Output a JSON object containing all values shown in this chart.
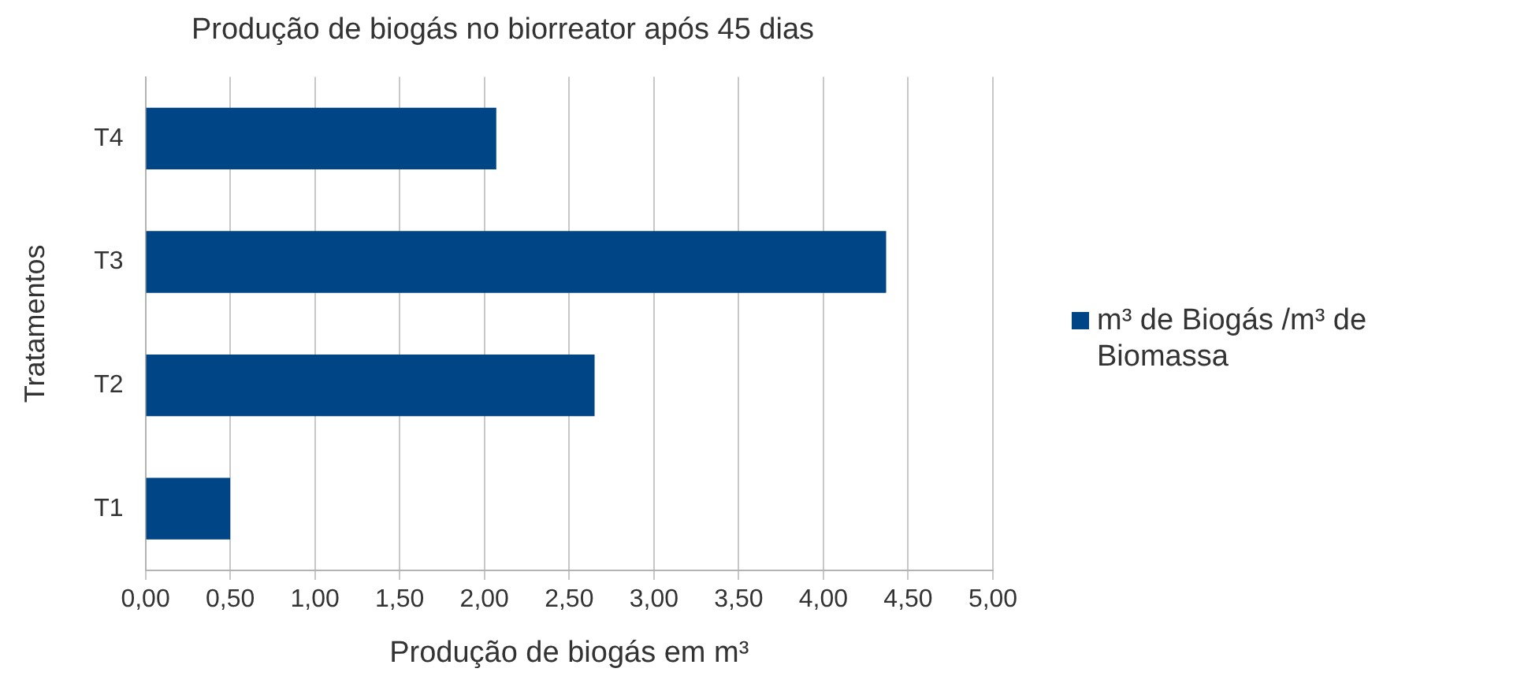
{
  "chart_data": {
    "type": "bar",
    "orientation": "horizontal",
    "title": "Produção de biogás no biorreator após 45 dias",
    "xlabel": "Produção de biogás em m³",
    "ylabel": "Tratamentos",
    "categories": [
      "T4",
      "T3",
      "T2",
      "T1"
    ],
    "series": [
      {
        "name": "m³ de Biogás /m³ de Biomassa",
        "color": "#004586",
        "values": [
          2.07,
          4.37,
          2.65,
          0.5
        ]
      }
    ],
    "xlim": [
      0,
      5
    ],
    "xticks": [
      {
        "value": 0,
        "label": "0,00"
      },
      {
        "value": 0.5,
        "label": "0,50"
      },
      {
        "value": 1,
        "label": "1,00"
      },
      {
        "value": 1.5,
        "label": "1,50"
      },
      {
        "value": 2,
        "label": "2,00"
      },
      {
        "value": 2.5,
        "label": "2,50"
      },
      {
        "value": 3,
        "label": "3,00"
      },
      {
        "value": 3.5,
        "label": "3,50"
      },
      {
        "value": 4,
        "label": "4,00"
      },
      {
        "value": 4.5,
        "label": "4,50"
      },
      {
        "value": 5,
        "label": "5,00"
      }
    ],
    "grid": "x",
    "legend": "right"
  }
}
